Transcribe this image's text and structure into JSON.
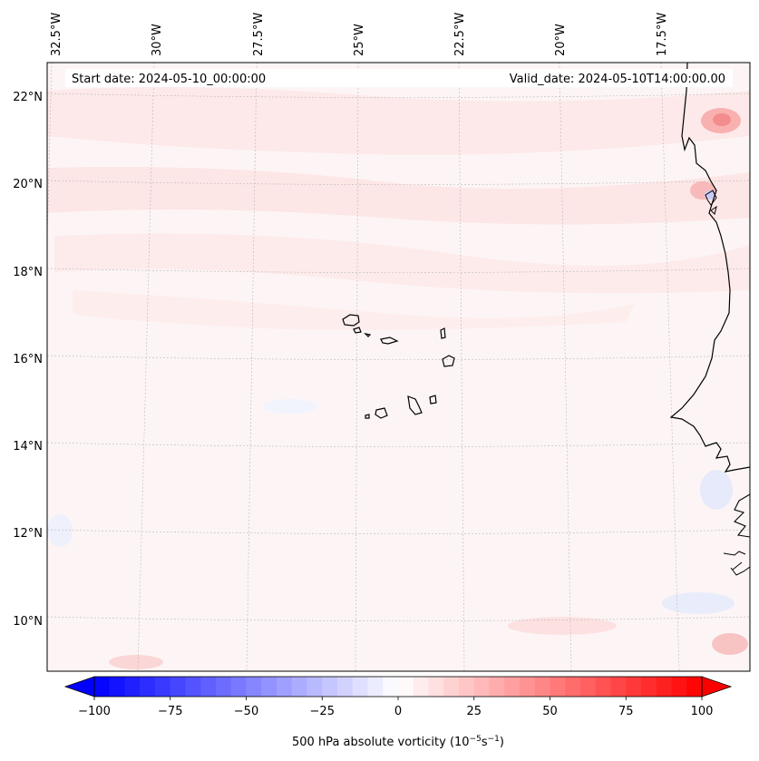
{
  "map": {
    "start_date_label": "Start date: 2024-05-10_00:00:00",
    "valid_date_label": "Valid_date: 2024-05-10T14:00:00.00",
    "longitude_labels": [
      "32.5°W",
      "30°W",
      "27.5°W",
      "25°W",
      "22.5°W",
      "20°W",
      "17.5°W"
    ],
    "latitude_labels": [
      "22°N",
      "20°N",
      "18°N",
      "16°N",
      "14°N",
      "12°N",
      "10°N"
    ],
    "field_name": "500 hPa absolute vorticity",
    "colors": {
      "coastline": "#000000",
      "gridline": "#b0b0b0",
      "background": "#fdf4f4",
      "positive": "#ff0000",
      "negative": "#0000ff"
    }
  },
  "colorbar": {
    "label_text": "500 hPa absolute vorticity (10",
    "label_exp1": "−5",
    "label_mid": "s",
    "label_exp2": "−1",
    "label_end": ")",
    "ticks": [
      "−100",
      "−75",
      "−50",
      "−25",
      "0",
      "25",
      "50",
      "75",
      "100"
    ],
    "min": -100,
    "max": 100,
    "step": 5,
    "extend": "both",
    "colormap": "bwr"
  }
}
